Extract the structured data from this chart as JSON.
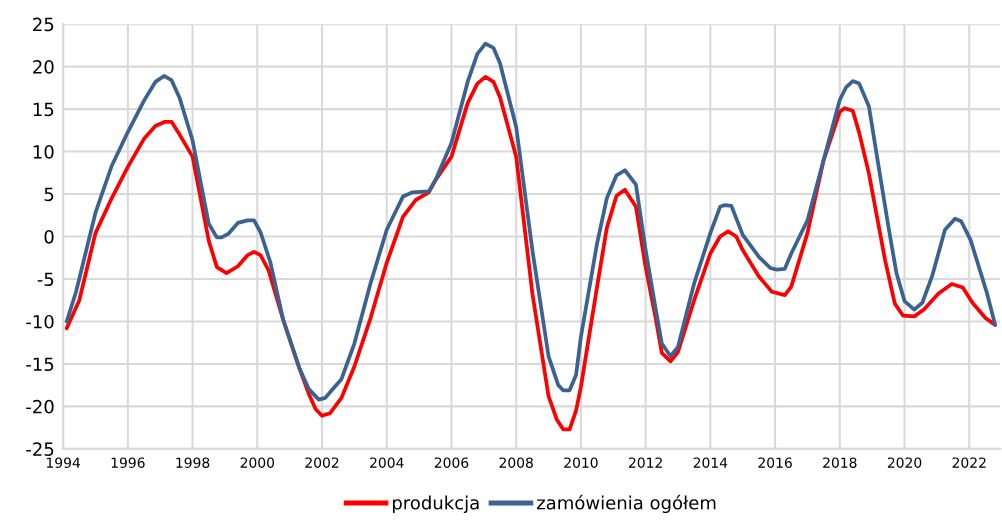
{
  "chart_data": {
    "type": "line",
    "series": [
      {
        "name": "produkcja",
        "color": "#ff0000",
        "x": [
          1994.11,
          1994.5,
          1995.0,
          1995.5,
          1996.0,
          1996.5,
          1996.85,
          1997.15,
          1997.35,
          1997.6,
          1998.0,
          1998.5,
          1998.75,
          1999.05,
          1999.4,
          1999.7,
          1999.9,
          2000.1,
          2000.35,
          2000.8,
          2001.3,
          2001.6,
          2001.8,
          2002.0,
          2002.25,
          2002.6,
          2003.0,
          2003.5,
          2004.0,
          2004.5,
          2004.9,
          2005.3,
          2005.5,
          2006.0,
          2006.5,
          2006.8,
          2007.05,
          2007.3,
          2007.5,
          2008.0,
          2008.5,
          2009.0,
          2009.25,
          2009.45,
          2009.65,
          2009.85,
          2010.0,
          2010.5,
          2010.8,
          2011.1,
          2011.36,
          2011.7,
          2012.0,
          2012.3,
          2012.5,
          2012.77,
          2013.0,
          2013.5,
          2014.0,
          2014.3,
          2014.55,
          2014.8,
          2015.0,
          2015.5,
          2015.9,
          2016.3,
          2016.5,
          2017.0,
          2017.5,
          2018.0,
          2018.15,
          2018.4,
          2018.6,
          2018.9,
          2019.4,
          2019.7,
          2019.95,
          2020.3,
          2020.6,
          2021.05,
          2021.46,
          2021.8,
          2022.1,
          2022.5,
          2022.8
        ],
        "values": [
          -10.8,
          -7.5,
          0.4,
          4.5,
          8.2,
          11.5,
          13.0,
          13.5,
          13.5,
          12.0,
          9.4,
          -0.5,
          -3.6,
          -4.3,
          -3.5,
          -2.2,
          -1.8,
          -2.2,
          -4.0,
          -9.8,
          -15.5,
          -18.6,
          -20.3,
          -21.1,
          -20.8,
          -19.0,
          -15.3,
          -9.6,
          -3.1,
          2.3,
          4.3,
          5.2,
          6.6,
          9.4,
          15.7,
          18.0,
          18.8,
          18.2,
          16.4,
          9.4,
          -6.7,
          -18.8,
          -21.5,
          -22.7,
          -22.7,
          -20.5,
          -17.7,
          -5.9,
          1.0,
          4.8,
          5.5,
          3.5,
          -3.6,
          -9.4,
          -13.7,
          -14.7,
          -13.6,
          -7.5,
          -2.0,
          0.0,
          0.6,
          0.0,
          -1.6,
          -4.7,
          -6.5,
          -6.9,
          -5.9,
          0.4,
          9.0,
          14.7,
          15.1,
          14.8,
          12.2,
          7.4,
          -2.8,
          -7.9,
          -9.3,
          -9.4,
          -8.6,
          -6.7,
          -5.6,
          -6.0,
          -7.8,
          -9.6,
          -10.4
        ]
      },
      {
        "name": "zamówienia ogółem",
        "color": "#3b6392",
        "x": [
          1994.11,
          1994.4,
          1995.0,
          1995.5,
          1996.0,
          1996.5,
          1996.85,
          1997.12,
          1997.35,
          1997.6,
          1998.0,
          1998.5,
          1998.75,
          1998.9,
          1999.1,
          1999.4,
          1999.7,
          1999.9,
          2000.1,
          2000.4,
          2000.8,
          2001.3,
          2001.6,
          2001.9,
          2002.1,
          2002.3,
          2002.6,
          2003.0,
          2003.5,
          2004.0,
          2004.5,
          2004.8,
          2005.3,
          2005.5,
          2006.0,
          2006.5,
          2006.8,
          2007.05,
          2007.3,
          2007.5,
          2008.0,
          2008.5,
          2009.0,
          2009.3,
          2009.45,
          2009.65,
          2009.85,
          2010.0,
          2010.5,
          2010.8,
          2011.1,
          2011.36,
          2011.7,
          2012.0,
          2012.3,
          2012.5,
          2012.77,
          2013.0,
          2013.5,
          2014.0,
          2014.3,
          2014.45,
          2014.65,
          2015.0,
          2015.5,
          2015.85,
          2016.05,
          2016.3,
          2016.5,
          2017.0,
          2017.5,
          2018.0,
          2018.2,
          2018.4,
          2018.6,
          2018.9,
          2019.15,
          2019.5,
          2019.75,
          2020.0,
          2020.3,
          2020.55,
          2020.85,
          2021.25,
          2021.56,
          2021.75,
          2022.04,
          2022.55,
          2022.8
        ],
        "values": [
          -10.0,
          -6.5,
          2.8,
          8.3,
          12.3,
          16.0,
          18.2,
          18.9,
          18.4,
          16.3,
          11.3,
          1.5,
          -0.1,
          -0.1,
          0.3,
          1.6,
          1.9,
          1.9,
          0.5,
          -3.0,
          -9.8,
          -15.5,
          -18.0,
          -19.2,
          -19.0,
          -18.1,
          -16.8,
          -12.6,
          -5.5,
          0.8,
          4.7,
          5.2,
          5.3,
          6.6,
          11.0,
          18.2,
          21.5,
          22.7,
          22.2,
          20.4,
          12.9,
          -1.6,
          -14.1,
          -17.5,
          -18.1,
          -18.1,
          -16.3,
          -11.8,
          -0.8,
          4.5,
          7.2,
          7.8,
          6.1,
          -1.6,
          -8.3,
          -12.6,
          -14.1,
          -13.0,
          -5.5,
          0.4,
          3.5,
          3.7,
          3.6,
          0.2,
          -2.4,
          -3.7,
          -3.9,
          -3.8,
          -2.0,
          1.9,
          9.0,
          16.1,
          17.6,
          18.3,
          18.0,
          15.3,
          9.4,
          1.2,
          -4.3,
          -7.6,
          -8.6,
          -7.8,
          -4.7,
          0.8,
          2.1,
          1.8,
          -0.4,
          -6.7,
          -10.4
        ]
      }
    ],
    "xlim": [
      1994,
      2022.95
    ],
    "xticks": [
      1994,
      1996,
      1998,
      2000,
      2002,
      2004,
      2006,
      2008,
      2010,
      2012,
      2014,
      2016,
      2018,
      2020,
      2022
    ],
    "ylim": [
      -25,
      25
    ],
    "yticks": [
      -25,
      -20,
      -15,
      -10,
      -5,
      0,
      5,
      10,
      15,
      20,
      25
    ],
    "grid": true,
    "legend": "bottom",
    "marker": "none",
    "line_style": "solid"
  }
}
